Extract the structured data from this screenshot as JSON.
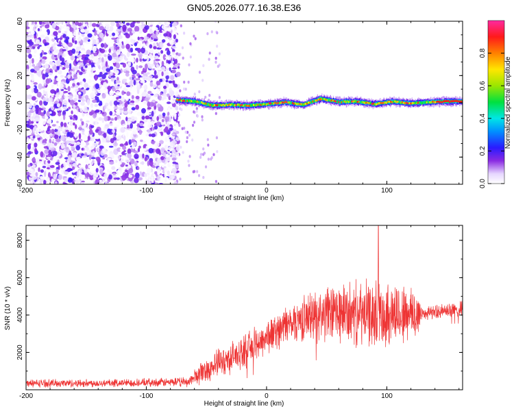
{
  "chart_data": [
    {
      "type": "heatmap",
      "title": "GN05.2026.077.16.38.E36",
      "xlabel": "Height of straight line (km)",
      "ylabel": "Frequency (Hz)",
      "xlim": [
        -200,
        163
      ],
      "ylim": [
        -60,
        60
      ],
      "xticks": [
        -200,
        -100,
        0,
        100
      ],
      "yticks": [
        60,
        40,
        20,
        0,
        -20,
        -40,
        -60
      ],
      "colorbar": {
        "label": "Normalized spectral amplitude",
        "range": [
          0,
          1
        ],
        "ticks": [
          "0.0",
          "0.2",
          "0.4",
          "0.6",
          "0.8"
        ],
        "colormap": "rainbow (white-violet-blue-cyan-green-yellow-orange-red-magenta)"
      },
      "noise_region": {
        "x_from": -200,
        "x_to": -73,
        "freq_range": [
          -60,
          60
        ],
        "amplitude_range": [
          0.0,
          0.2
        ]
      },
      "ridge": [
        {
          "x": -75,
          "freq": 2.0
        },
        {
          "x": -60,
          "freq": 1.0
        },
        {
          "x": -45,
          "freq": -2.0
        },
        {
          "x": -30,
          "freq": -1.5
        },
        {
          "x": -15,
          "freq": -2.0
        },
        {
          "x": 0,
          "freq": -1.0
        },
        {
          "x": 15,
          "freq": 0.5
        },
        {
          "x": 30,
          "freq": -1.5
        },
        {
          "x": 45,
          "freq": 3.0
        },
        {
          "x": 60,
          "freq": 0.5
        },
        {
          "x": 75,
          "freq": 1.0
        },
        {
          "x": 90,
          "freq": -1.0
        },
        {
          "x": 105,
          "freq": 1.0
        },
        {
          "x": 120,
          "freq": -0.5
        },
        {
          "x": 135,
          "freq": 0.5
        },
        {
          "x": 150,
          "freq": 1.0
        },
        {
          "x": 163,
          "freq": 1.0
        }
      ]
    },
    {
      "type": "line",
      "title": "",
      "xlabel": "Height of straight line (km)",
      "ylabel": "SNR (10 * v/v)",
      "xlim": [
        -200,
        163
      ],
      "ylim": [
        0,
        8800
      ],
      "xticks": [
        -200,
        -100,
        0,
        100
      ],
      "yticks": [
        2000,
        4000,
        6000,
        8000
      ],
      "color": "#ee3333",
      "envelope": [
        {
          "x": -200,
          "mean": 350,
          "spread": 250
        },
        {
          "x": -150,
          "mean": 350,
          "spread": 250
        },
        {
          "x": -100,
          "mean": 380,
          "spread": 250
        },
        {
          "x": -65,
          "mean": 420,
          "spread": 300
        },
        {
          "x": -55,
          "mean": 900,
          "spread": 700
        },
        {
          "x": -40,
          "mean": 1400,
          "spread": 900
        },
        {
          "x": -20,
          "mean": 2000,
          "spread": 1000
        },
        {
          "x": 0,
          "mean": 2800,
          "spread": 1100
        },
        {
          "x": 20,
          "mean": 3600,
          "spread": 1200
        },
        {
          "x": 40,
          "mean": 4000,
          "spread": 1600
        },
        {
          "x": 60,
          "mean": 4100,
          "spread": 1900
        },
        {
          "x": 80,
          "mean": 4000,
          "spread": 2000
        },
        {
          "x": 100,
          "mean": 4100,
          "spread": 2100
        },
        {
          "x": 125,
          "mean": 4000,
          "spread": 1800
        },
        {
          "x": 130,
          "mean": 4100,
          "spread": 400
        },
        {
          "x": 163,
          "mean": 4300,
          "spread": 500
        }
      ],
      "peak": {
        "x": 93,
        "y": 8800
      }
    }
  ]
}
